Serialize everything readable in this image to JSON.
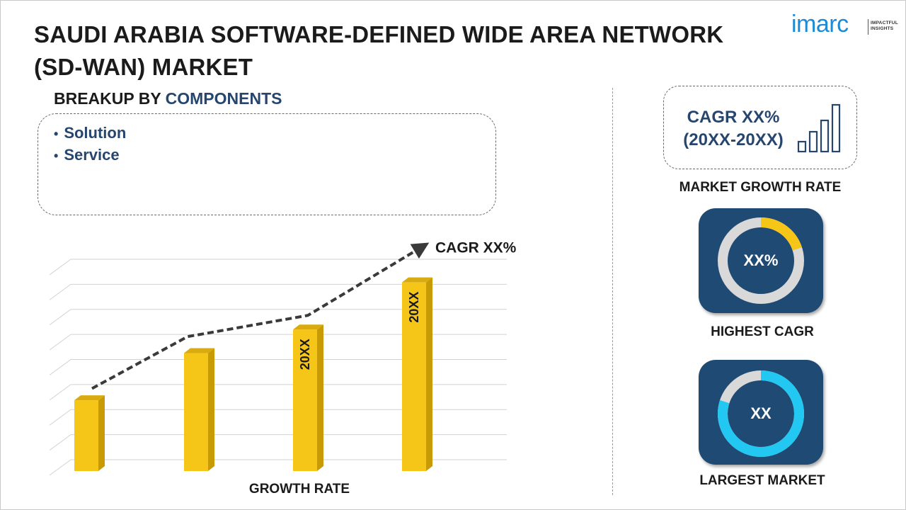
{
  "title": "SAUDI ARABIA SOFTWARE-DEFINED WIDE AREA NETWORK (SD-WAN) MARKET",
  "logo": {
    "word": "imarc",
    "tagline_1": "IMPACTFUL",
    "tagline_2": "INSIGHTS",
    "color": "#1d8ad6"
  },
  "breakup": {
    "label": "BREAKUP BY",
    "accent": "COMPONENTS",
    "items": [
      "Solution",
      "Service"
    ]
  },
  "chart_data": {
    "type": "bar",
    "categories": [
      "",
      "",
      "",
      ""
    ],
    "values": [
      30,
      50,
      60,
      80
    ],
    "bar_labels": [
      "",
      "",
      "20XX",
      "20XX"
    ],
    "trend_values": [
      35,
      57,
      66,
      95
    ],
    "trend_label": "CAGR XX%",
    "xlabel": "GROWTH RATE",
    "ylabel": "",
    "ylim": [
      0,
      85
    ],
    "gridlines": 9,
    "bar_color": "#f5c518"
  },
  "sidebar": {
    "cagr_line1": "CAGR XX%",
    "cagr_line2": "(20XX-20XX)",
    "growth_label": "MARKET GROWTH RATE",
    "highest": {
      "value": "XX%",
      "label": "HIGHEST CAGR",
      "fraction": 0.2,
      "color": "#f5c518"
    },
    "largest": {
      "value": "XX",
      "label": "LARGEST MARKET",
      "fraction": 0.8,
      "color": "#22c8f2"
    },
    "tile_color": "#1f4a73"
  }
}
